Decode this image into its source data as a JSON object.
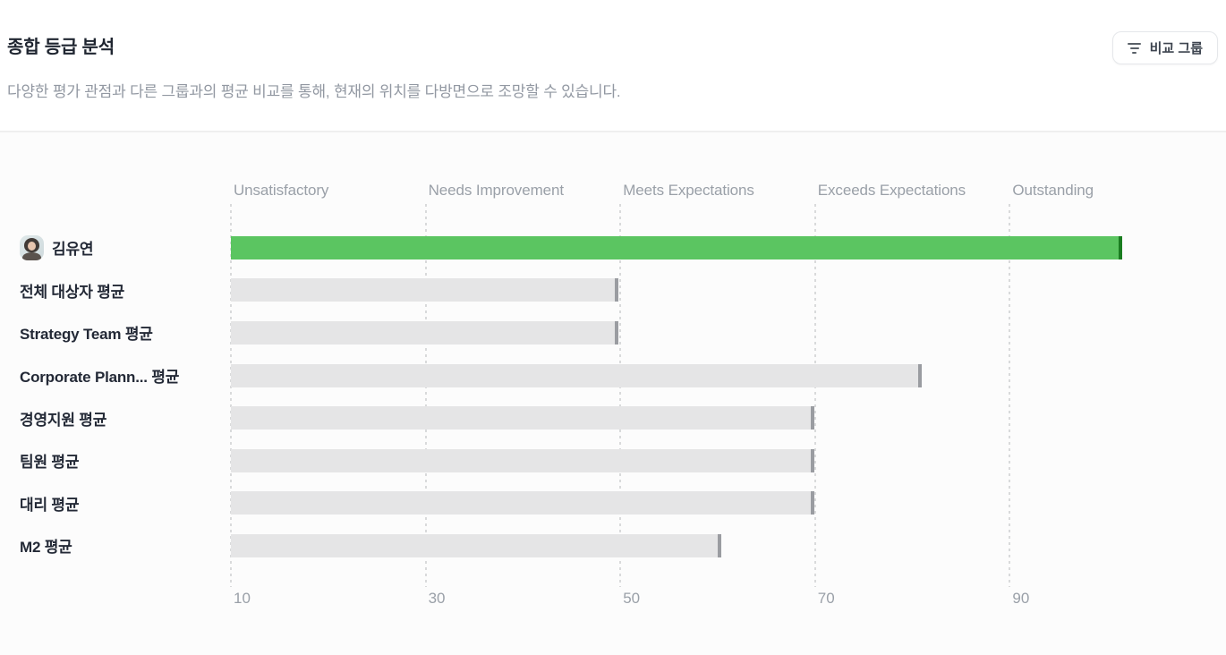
{
  "header": {
    "title": "종합 등급 분석",
    "subtitle": "다양한 평가 관점과 다른 그룹과의 평균 비교를 통해, 현재의 위치를 다방면으로 조망할 수 있습니다.",
    "compare_button_label": "비교 그룹",
    "compare_button_icon": "filter-lines-icon"
  },
  "chart_data": {
    "type": "bar",
    "orientation": "horizontal",
    "title": "종합 등급 분석",
    "xlabel": "",
    "ylabel": "",
    "axis": {
      "min": 10,
      "max": 110,
      "ticks": [
        10,
        30,
        50,
        70,
        90
      ],
      "gridlines": "dashed-vertical"
    },
    "bands": [
      "Unsatisfactory",
      "Needs Improvement",
      "Meets Expectations",
      "Exceeds Expectations",
      "Outstanding"
    ],
    "rows": [
      {
        "label": "김유연",
        "value": 101.5,
        "highlight": true,
        "has_avatar": true
      },
      {
        "label": "전체 대상자 평균",
        "value": 49.8
      },
      {
        "label": "Strategy Team 평균",
        "value": 49.8
      },
      {
        "label": "Corporate Plann... 평균",
        "value": 81
      },
      {
        "label": "경영지원 평균",
        "value": 69.9
      },
      {
        "label": "팀원 평균",
        "value": 69.9
      },
      {
        "label": "대리 평균",
        "value": 69.9
      },
      {
        "label": "M2 평균",
        "value": 60.4
      }
    ],
    "colors": {
      "highlight_bar": "#5bc561",
      "highlight_cap": "#1a7d20",
      "bar": "#e5e5e6",
      "cap": "#9a9ca1"
    }
  }
}
